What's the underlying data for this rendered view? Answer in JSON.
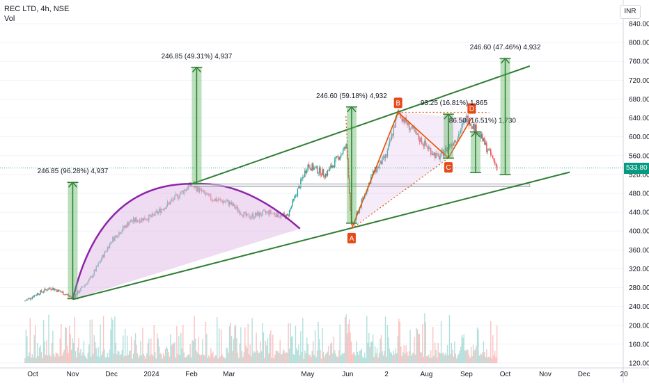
{
  "legend": {
    "title": "REC LTD, 4h, NSE",
    "vol": "Vol"
  },
  "currency": "INR",
  "last_price_label": "533.80",
  "colors": {
    "up": "#26a69a",
    "down": "#ef5350",
    "channel": "#2e7d32",
    "cup_arc": "#8e24aa",
    "cup_fill": "#e1bee7",
    "measure": "#66bb6a",
    "harmonic": "#e65100",
    "label_bg": "#e64a19"
  },
  "chart_data": {
    "type": "candlestick",
    "y_range": [
      120,
      840
    ],
    "price_ticks": [
      "840.00",
      "800.00",
      "760.00",
      "720.00",
      "680.00",
      "640.00",
      "600.00",
      "560.00",
      "520.00",
      "480.00",
      "440.00",
      "400.00",
      "360.00",
      "320.00",
      "280.00",
      "240.00",
      "200.00",
      "160.00",
      "120.00"
    ],
    "x_labels": [
      "Oct",
      "Nov",
      "Dec",
      "2024",
      "Feb",
      "Mar",
      "May",
      "Jun",
      "2",
      "Aug",
      "Sep",
      "Oct",
      "Nov",
      "Dec",
      "20"
    ],
    "price_path": [
      {
        "d": "2023-09-25",
        "p": 252
      },
      {
        "d": "2023-10-05",
        "p": 268
      },
      {
        "d": "2023-10-15",
        "p": 280
      },
      {
        "d": "2023-10-25",
        "p": 268
      },
      {
        "d": "2023-11-01",
        "p": 258
      },
      {
        "d": "2023-11-15",
        "p": 300
      },
      {
        "d": "2023-12-01",
        "p": 380
      },
      {
        "d": "2023-12-15",
        "p": 420
      },
      {
        "d": "2024-01-01",
        "p": 430
      },
      {
        "d": "2024-01-15",
        "p": 460
      },
      {
        "d": "2024-02-01",
        "p": 500
      },
      {
        "d": "2024-02-15",
        "p": 470
      },
      {
        "d": "2024-03-01",
        "p": 460
      },
      {
        "d": "2024-03-15",
        "p": 430
      },
      {
        "d": "2024-04-01",
        "p": 440
      },
      {
        "d": "2024-04-15",
        "p": 430
      },
      {
        "d": "2024-05-01",
        "p": 540
      },
      {
        "d": "2024-05-15",
        "p": 520
      },
      {
        "d": "2024-05-31",
        "p": 580
      },
      {
        "d": "2024-06-04",
        "p": 405
      },
      {
        "d": "2024-06-20",
        "p": 520
      },
      {
        "d": "2024-07-01",
        "p": 560
      },
      {
        "d": "2024-07-10",
        "p": 652
      },
      {
        "d": "2024-07-25",
        "p": 600
      },
      {
        "d": "2024-08-10",
        "p": 555
      },
      {
        "d": "2024-08-25",
        "p": 600
      },
      {
        "d": "2024-09-01",
        "p": 640
      },
      {
        "d": "2024-09-10",
        "p": 610
      },
      {
        "d": "2024-09-20",
        "p": 560
      },
      {
        "d": "2024-09-25",
        "p": 533.8
      }
    ],
    "channel_lines": [
      {
        "from": {
          "d": "2023-11-01",
          "p": 255
        },
        "to": {
          "d": "2024-11-20",
          "p": 525
        }
      },
      {
        "from": {
          "d": "2024-02-01",
          "p": 500
        },
        "to": {
          "d": "2024-10-20",
          "p": 750
        }
      }
    ],
    "support_zone": {
      "from": "2024-02-01",
      "to": "2024-10-20",
      "low": 494,
      "high": 500
    },
    "cup": {
      "start": {
        "d": "2023-11-01",
        "p": 255
      },
      "top": {
        "d": "2024-02-05",
        "p": 500
      },
      "end": {
        "d": "2024-04-25",
        "p": 405
      }
    },
    "harmonic": {
      "points": [
        {
          "label": "A",
          "d": "2024-06-04",
          "p": 405
        },
        {
          "label": "B",
          "d": "2024-07-10",
          "p": 652
        },
        {
          "label": "C",
          "d": "2024-08-18",
          "p": 555
        },
        {
          "label": "D",
          "d": "2024-09-05",
          "p": 640
        }
      ]
    },
    "measures": [
      {
        "label": "246.85 (96.28%) 4,937",
        "from": {
          "d": "2023-11-01",
          "p": 256.4
        },
        "to": {
          "d": "2023-11-01",
          "p": 503.3
        }
      },
      {
        "label": "246.85 (49.31%) 4,937",
        "from": {
          "d": "2024-02-05",
          "p": 500.6
        },
        "to": {
          "d": "2024-02-05",
          "p": 747.4
        }
      },
      {
        "label": "246.60 (59.18%) 4,932",
        "from": {
          "d": "2024-06-04",
          "p": 416.7
        },
        "to": {
          "d": "2024-06-04",
          "p": 663.3
        }
      },
      {
        "label": "93.25 (16.81%) 1,865",
        "from": {
          "d": "2024-08-18",
          "p": 554.7
        },
        "to": {
          "d": "2024-08-18",
          "p": 648
        }
      },
      {
        "label": "86.50 (16.51%) 1,730",
        "from": {
          "d": "2024-09-08",
          "p": 523.9
        },
        "to": {
          "d": "2024-09-08",
          "p": 610.4
        }
      },
      {
        "label": "246.60 (47.46%) 4,932",
        "from": {
          "d": "2024-10-01",
          "p": 519.6
        },
        "to": {
          "d": "2024-10-01",
          "p": 766.2
        }
      }
    ],
    "last_price": 533.8
  }
}
